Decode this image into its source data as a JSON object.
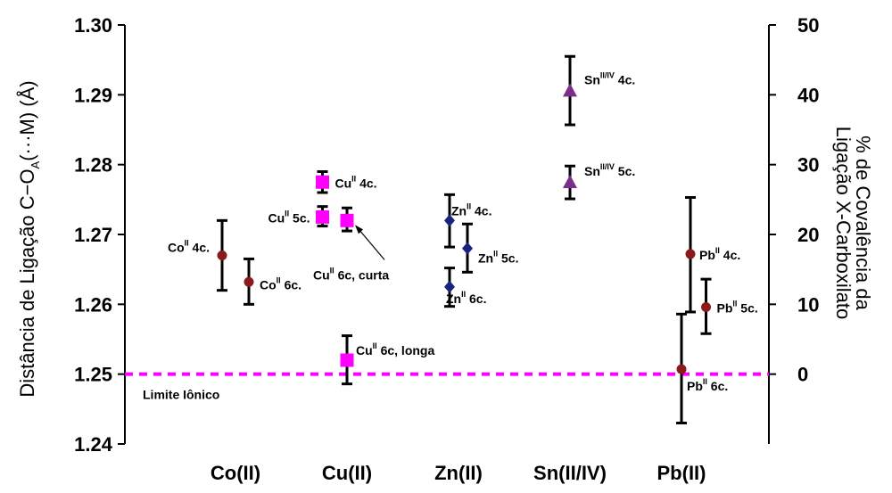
{
  "chart_data": {
    "type": "scatter",
    "categories": [
      "Co(II)",
      "Cu(II)",
      "Zn(II)",
      "Sn(II/IV)",
      "Pb(II)"
    ],
    "ylabel_left": "Distância de Ligação C−O",
    "ylabel_left_sub": "A",
    "ylabel_left_tail": "(···M) (Å)",
    "ylabel_right_line1": "% de Covalência da",
    "ylabel_right_line2": "Ligação X-Carboxilato",
    "ylim_left": [
      1.24,
      1.3
    ],
    "ylim_right": [
      -10,
      50
    ],
    "yticks_left": [
      "1.24",
      "1.25",
      "1.26",
      "1.27",
      "1.28",
      "1.29",
      "1.30"
    ],
    "yticks_right": [
      "0",
      "10",
      "20",
      "30",
      "40",
      "50"
    ],
    "reference_line": {
      "y": 1.25,
      "label": "Limite Iônico",
      "color": "#ff00ff"
    },
    "points": [
      {
        "category_index": 0,
        "offset": -0.12,
        "y": 1.267,
        "err_low": 1.262,
        "err_high": 1.272,
        "marker": "circle",
        "color": "#8b1a1a",
        "label": "Co",
        "label_sup": "II",
        "label_tail": " 4c."
      },
      {
        "category_index": 0,
        "offset": 0.12,
        "y": 1.2632,
        "err_low": 1.26,
        "err_high": 1.2665,
        "marker": "circle",
        "color": "#8b1a1a",
        "label": "Co",
        "label_sup": "II",
        "label_tail": " 6c."
      },
      {
        "category_index": 1,
        "offset": -0.22,
        "y": 1.2775,
        "err_low": 1.276,
        "err_high": 1.279,
        "marker": "square",
        "color": "#ff00ff",
        "label": "Cu",
        "label_sup": "II",
        "label_tail": " 4c."
      },
      {
        "category_index": 1,
        "offset": -0.22,
        "y": 1.2725,
        "err_low": 1.2712,
        "err_high": 1.274,
        "marker": "square",
        "color": "#ff00ff",
        "label": "Cu",
        "label_sup": "II",
        "label_tail": " 5c."
      },
      {
        "category_index": 1,
        "offset": 0.0,
        "y": 1.272,
        "err_low": 1.2705,
        "err_high": 1.2738,
        "marker": "square",
        "color": "#ff00ff",
        "label": "Cu",
        "label_sup": "II",
        "label_tail": " 6c, curta"
      },
      {
        "category_index": 1,
        "offset": 0.0,
        "y": 1.252,
        "err_low": 1.2486,
        "err_high": 1.2555,
        "marker": "square",
        "color": "#ff00ff",
        "label": "Cu",
        "label_sup": "II",
        "label_tail": " 6c, longa"
      },
      {
        "category_index": 2,
        "offset": -0.08,
        "y": 1.272,
        "err_low": 1.2682,
        "err_high": 1.2757,
        "marker": "diamond",
        "color": "#1a237e",
        "label": "Zn",
        "label_sup": "II",
        "label_tail": " 4c."
      },
      {
        "category_index": 2,
        "offset": 0.08,
        "y": 1.268,
        "err_low": 1.2646,
        "err_high": 1.2715,
        "marker": "diamond",
        "color": "#1a237e",
        "label": "Zn",
        "label_sup": "II",
        "label_tail": " 5c."
      },
      {
        "category_index": 2,
        "offset": -0.08,
        "y": 1.2625,
        "err_low": 1.2597,
        "err_high": 1.2652,
        "marker": "diamond",
        "color": "#1a237e",
        "label": "Zn",
        "label_sup": "II",
        "label_tail": " 6c."
      },
      {
        "category_index": 3,
        "offset": 0.0,
        "y": 1.2905,
        "err_low": 1.2857,
        "err_high": 1.2955,
        "marker": "triangle",
        "color": "#7b2d8b",
        "label": "Sn",
        "label_sup": "II/IV",
        "label_tail": " 4c."
      },
      {
        "category_index": 3,
        "offset": 0.0,
        "y": 1.2774,
        "err_low": 1.2751,
        "err_high": 1.2798,
        "marker": "triangle",
        "color": "#7b2d8b",
        "label": "Sn",
        "label_sup": "II/IV",
        "label_tail": " 5c."
      },
      {
        "category_index": 4,
        "offset": 0.08,
        "y": 1.2672,
        "err_low": 1.2589,
        "err_high": 1.2753,
        "marker": "circle",
        "color": "#8b1a1a",
        "label": "Pb",
        "label_sup": "II",
        "label_tail": " 4c."
      },
      {
        "category_index": 4,
        "offset": 0.22,
        "y": 1.2596,
        "err_low": 1.2558,
        "err_high": 1.2636,
        "marker": "circle",
        "color": "#8b1a1a",
        "label": "Pb",
        "label_sup": "II",
        "label_tail": " 5c."
      },
      {
        "category_index": 4,
        "offset": 0.0,
        "y": 1.2507,
        "err_low": 1.243,
        "err_high": 1.2586,
        "marker": "circle",
        "color": "#8b1a1a",
        "label": "Pb",
        "label_sup": "II",
        "label_tail": " 6c."
      }
    ]
  }
}
